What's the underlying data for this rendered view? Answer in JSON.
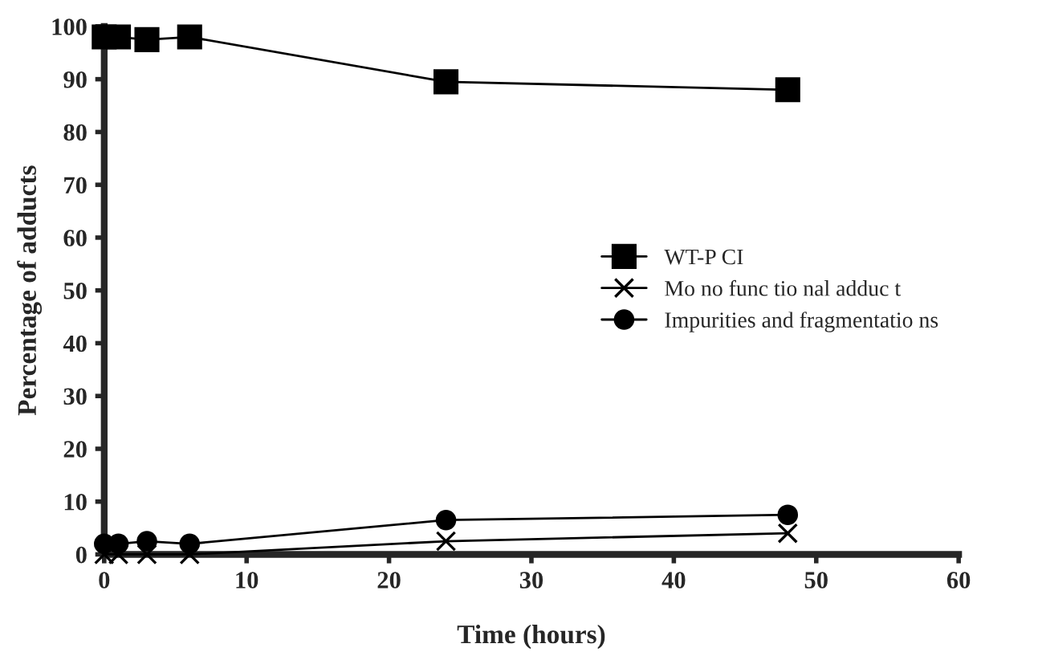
{
  "chart_data": {
    "type": "line",
    "xlabel": "Time (hours)",
    "ylabel": "Percentage of adducts",
    "x": [
      0,
      1,
      3,
      6,
      24,
      48
    ],
    "series": [
      {
        "name": "WT-P CI",
        "color": "#000000",
        "marker": "square",
        "values": [
          98,
          98,
          97.5,
          98,
          89.5,
          88
        ]
      },
      {
        "name": "Mo no func tio nal adduc t",
        "color": "#000000",
        "marker": "cross",
        "values": [
          0,
          0,
          0,
          0,
          2.5,
          4
        ]
      },
      {
        "name": "Impurities and fragmentatio ns",
        "color": "#000000",
        "marker": "circle",
        "values": [
          2,
          2,
          2.5,
          2,
          6.5,
          7.5
        ]
      }
    ],
    "xlim": [
      0,
      60
    ],
    "xticks": [
      0,
      10,
      20,
      30,
      40,
      50,
      60
    ],
    "ylim": [
      0,
      100
    ],
    "yticks": [
      0,
      10,
      20,
      30,
      40,
      50,
      60,
      70,
      80,
      90,
      100
    ],
    "grid": false,
    "legend": "center right",
    "line_style": "solid"
  }
}
